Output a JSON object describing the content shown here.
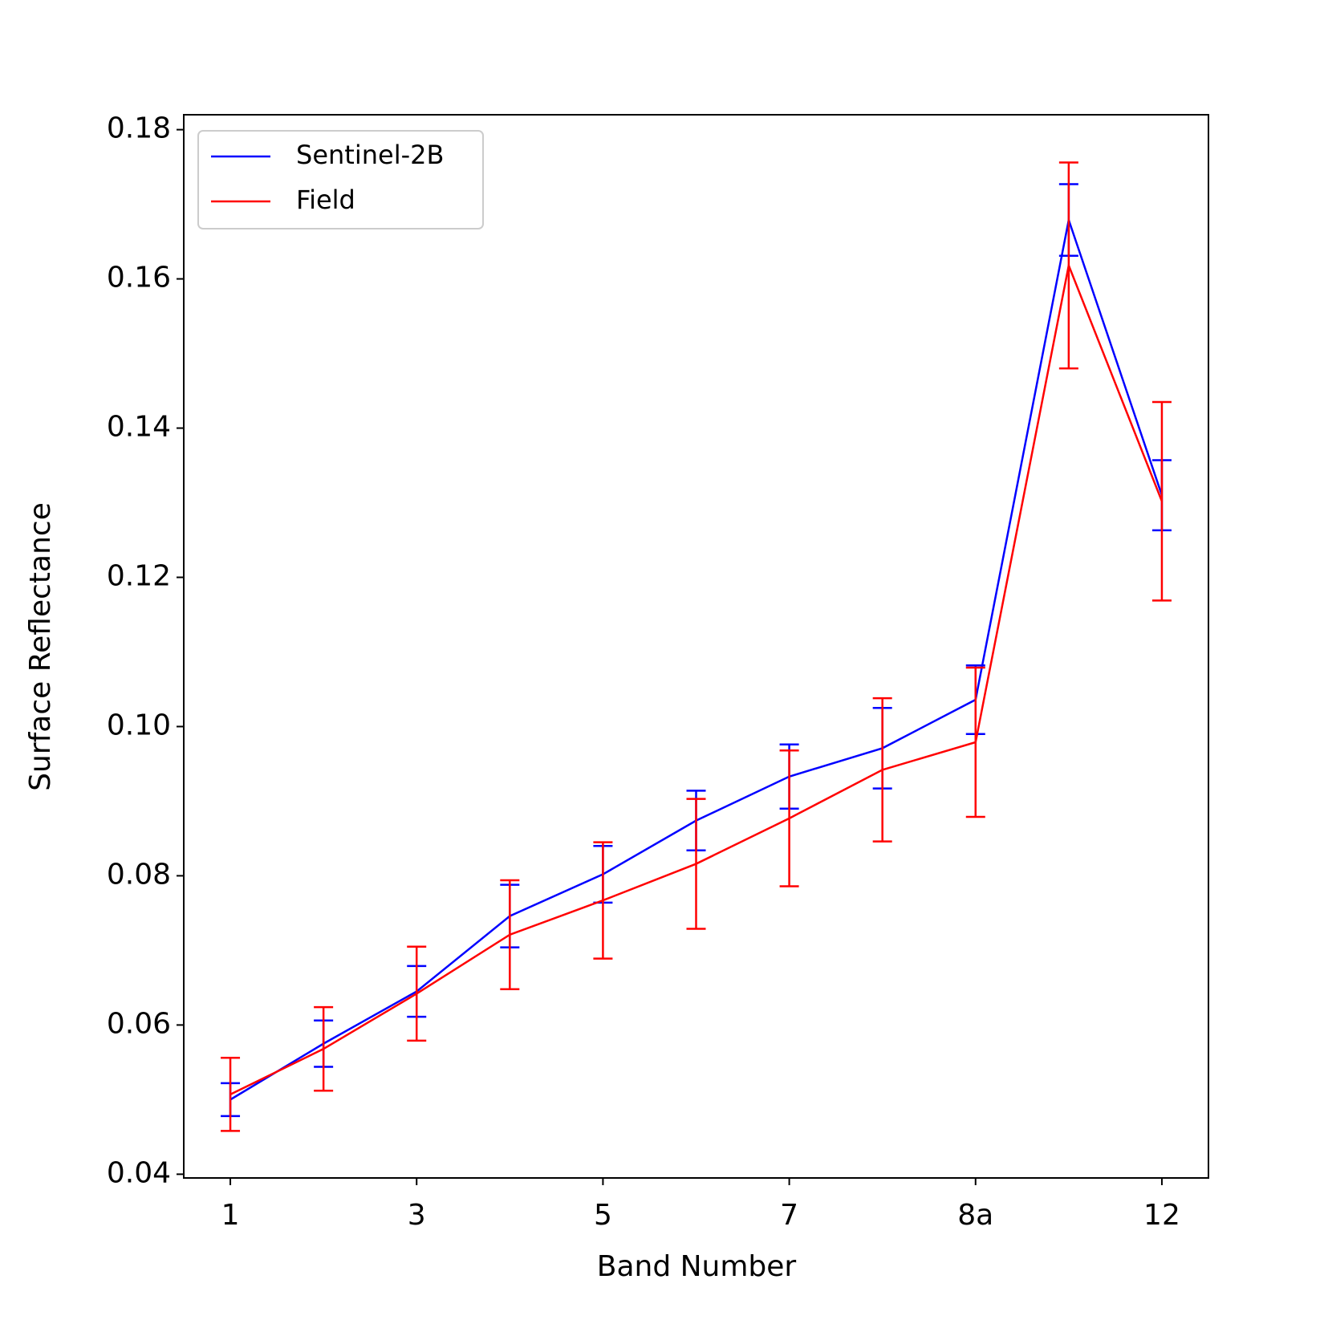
{
  "chart_data": {
    "type": "line",
    "xlabel": "Band Number",
    "ylabel": "Surface Reflectance",
    "categories": [
      "1",
      null,
      "3",
      null,
      "5",
      null,
      "7",
      null,
      "8a",
      null,
      "12"
    ],
    "series": [
      {
        "name": "Sentinel-2B",
        "color": "#0000ff",
        "values": [
          0.05,
          0.0575,
          0.0645,
          0.0746,
          0.0802,
          0.0874,
          0.0933,
          0.0971,
          0.1036,
          0.1679,
          0.131
        ],
        "errors": [
          0.0022,
          0.0031,
          0.0034,
          0.0042,
          0.0038,
          0.004,
          0.0043,
          0.0054,
          0.0046,
          0.0048,
          0.0047
        ]
      },
      {
        "name": "Field",
        "color": "#ff0000",
        "values": [
          0.0507,
          0.0568,
          0.0642,
          0.0721,
          0.0767,
          0.0816,
          0.0877,
          0.0942,
          0.0979,
          0.1618,
          0.1302
        ],
        "errors": [
          0.0049,
          0.0056,
          0.0063,
          0.0073,
          0.0078,
          0.0087,
          0.0091,
          0.0096,
          0.01,
          0.0138,
          0.0133
        ]
      }
    ],
    "ylim": [
      0.0395,
      0.182
    ],
    "yticks": [
      0.04,
      0.06,
      0.08,
      {
        "value": 0.1,
        "label": "0.10"
      },
      0.12,
      0.14,
      0.16,
      0.18
    ],
    "legend": "upper left",
    "grid": false
  }
}
